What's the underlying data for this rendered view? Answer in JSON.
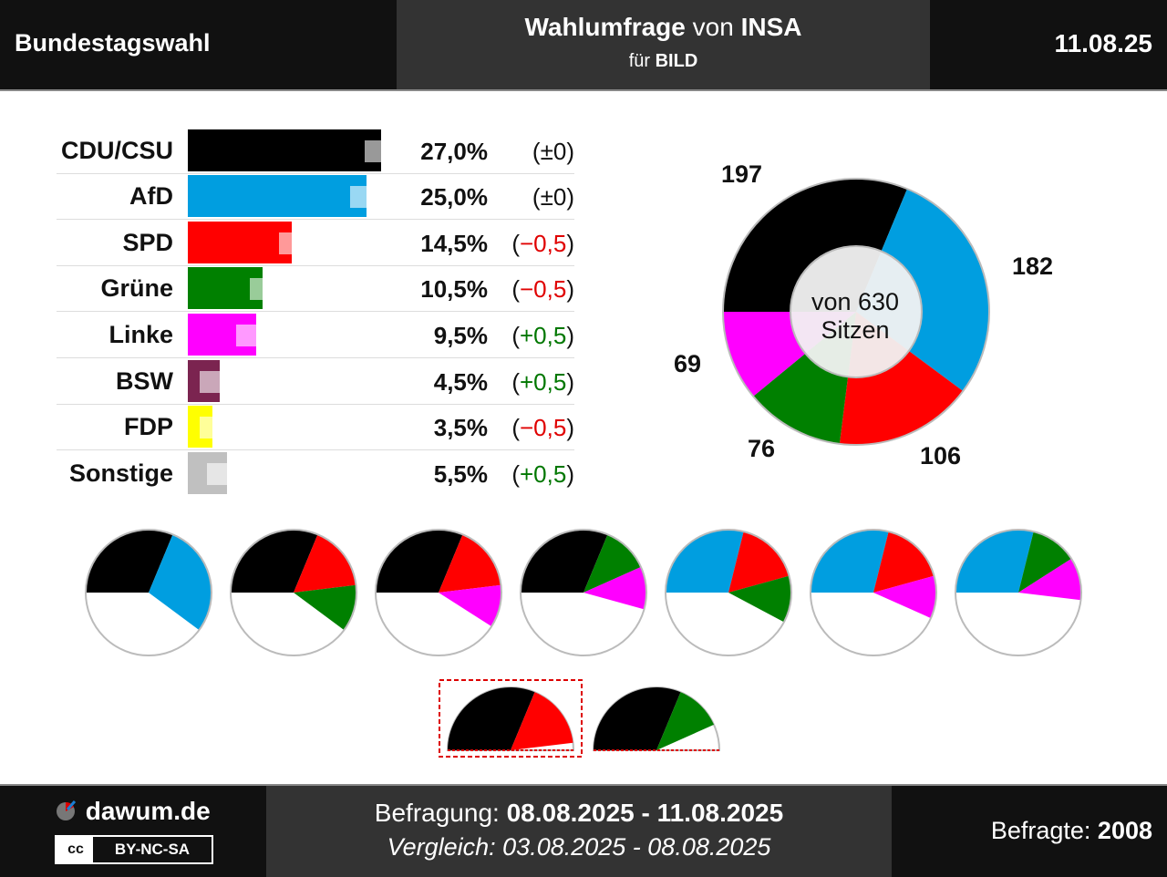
{
  "header": {
    "title": "Bundestagswahl",
    "poll_word": "Wahlumfrage",
    "poll_connector": "von",
    "institute": "INSA",
    "client_prefix": "für",
    "client": "BILD",
    "date": "11.08.25"
  },
  "chart_data": [
    {
      "type": "bar",
      "categories": [
        "CDU/CSU",
        "AfD",
        "SPD",
        "Grüne",
        "Linke",
        "BSW",
        "FDP",
        "Sonstige"
      ],
      "values": [
        27.0,
        25.0,
        14.5,
        10.5,
        9.5,
        4.5,
        3.5,
        5.5
      ],
      "value_labels": [
        "27,0%",
        "25,0%",
        "14,5%",
        "10,5%",
        "9,5%",
        "4,5%",
        "3,5%",
        "5,5%"
      ],
      "previous_values": [
        27.0,
        25.0,
        15.0,
        11.0,
        9.0,
        4.0,
        4.0,
        5.0
      ],
      "changes": [
        0,
        0,
        -0.5,
        -0.5,
        0.5,
        0.5,
        -0.5,
        0.5
      ],
      "change_labels": [
        "±0",
        "±0",
        "−0,5",
        "−0,5",
        "+0,5",
        "+0,5",
        "−0,5",
        "+0,5"
      ],
      "colors": [
        "#000000",
        "#009ee0",
        "#ff0000",
        "#008000",
        "#ff00ff",
        "#7b2450",
        "#ffff00",
        "#c0c0c0"
      ]
    },
    {
      "type": "pie",
      "title": "",
      "center_label_line1": "von 630",
      "center_label_line2": "Sitzen",
      "total": 630,
      "slices": [
        {
          "party": "CDU/CSU",
          "value": 197,
          "color": "#000000"
        },
        {
          "party": "AfD",
          "value": 182,
          "color": "#009ee0"
        },
        {
          "party": "SPD",
          "value": 106,
          "color": "#ff0000"
        },
        {
          "party": "Grüne",
          "value": 76,
          "color": "#008000"
        },
        {
          "party": "Linke",
          "value": 69,
          "color": "#ff00ff"
        }
      ]
    },
    {
      "type": "pie",
      "coalitions": [
        {
          "parties": [
            "CDU/CSU",
            "AfD"
          ],
          "seats": [
            197,
            182
          ],
          "colors": [
            "#000000",
            "#009ee0"
          ]
        },
        {
          "parties": [
            "CDU/CSU",
            "SPD",
            "Grüne"
          ],
          "seats": [
            197,
            106,
            76
          ],
          "colors": [
            "#000000",
            "#ff0000",
            "#008000"
          ]
        },
        {
          "parties": [
            "CDU/CSU",
            "SPD",
            "Linke"
          ],
          "seats": [
            197,
            106,
            69
          ],
          "colors": [
            "#000000",
            "#ff0000",
            "#ff00ff"
          ]
        },
        {
          "parties": [
            "CDU/CSU",
            "Grüne",
            "Linke"
          ],
          "seats": [
            197,
            76,
            69
          ],
          "colors": [
            "#000000",
            "#008000",
            "#ff00ff"
          ]
        },
        {
          "parties": [
            "AfD",
            "SPD",
            "Grüne"
          ],
          "seats": [
            182,
            106,
            76
          ],
          "colors": [
            "#009ee0",
            "#ff0000",
            "#008000"
          ]
        },
        {
          "parties": [
            "AfD",
            "SPD",
            "Linke"
          ],
          "seats": [
            182,
            106,
            69
          ],
          "colors": [
            "#009ee0",
            "#ff0000",
            "#ff00ff"
          ]
        },
        {
          "parties": [
            "AfD",
            "Grüne",
            "Linke"
          ],
          "seats": [
            182,
            76,
            69
          ],
          "colors": [
            "#009ee0",
            "#008000",
            "#ff00ff"
          ]
        }
      ],
      "small_coalitions": [
        {
          "parties": [
            "CDU/CSU",
            "SPD"
          ],
          "seats": [
            197,
            106
          ],
          "colors": [
            "#000000",
            "#ff0000"
          ],
          "highlighted": true
        },
        {
          "parties": [
            "CDU/CSU",
            "Grüne"
          ],
          "seats": [
            197,
            76
          ],
          "colors": [
            "#000000",
            "#008000"
          ],
          "highlighted": false
        }
      ]
    }
  ],
  "footer": {
    "site": "dawum.de",
    "license_cc": "cc",
    "license": "BY-NC-SA",
    "survey_label": "Befragung:",
    "survey_dates": "08.08.2025 - 11.08.2025",
    "compare_label": "Vergleich:",
    "compare_dates": "03.08.2025 - 08.08.2025",
    "respondents_label": "Befragte:",
    "respondents": "2008"
  }
}
